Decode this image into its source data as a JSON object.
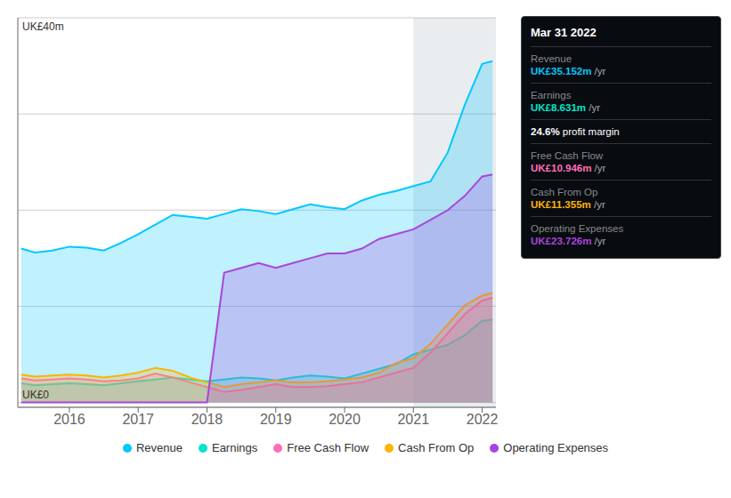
{
  "chart_data": {
    "type": "area",
    "x": [
      2015.3,
      2015.5,
      2015.75,
      2016.0,
      2016.25,
      2016.5,
      2016.75,
      2017.0,
      2017.25,
      2017.5,
      2017.75,
      2018.0,
      2018.25,
      2018.5,
      2018.75,
      2019.0,
      2019.25,
      2019.5,
      2019.75,
      2020.0,
      2020.25,
      2020.5,
      2020.75,
      2021.0,
      2021.25,
      2021.5,
      2021.75,
      2022.0,
      2022.15
    ],
    "series": [
      {
        "name": "Revenue",
        "color": "#00c8ff",
        "values": [
          16.0,
          15.6,
          15.8,
          16.2,
          16.1,
          15.8,
          16.6,
          17.5,
          18.5,
          19.5,
          19.3,
          19.1,
          19.6,
          20.1,
          19.9,
          19.6,
          20.1,
          20.6,
          20.3,
          20.1,
          21.0,
          21.6,
          22.0,
          22.5,
          23.0,
          26.0,
          31.0,
          35.2,
          35.5
        ]
      },
      {
        "name": "Earnings",
        "color": "#00e5cc",
        "values": [
          2.0,
          1.8,
          1.9,
          2.0,
          1.9,
          1.8,
          2.0,
          2.2,
          2.4,
          2.6,
          2.4,
          2.2,
          2.4,
          2.6,
          2.5,
          2.3,
          2.6,
          2.8,
          2.7,
          2.5,
          3.0,
          3.5,
          4.0,
          5.0,
          5.5,
          6.0,
          7.0,
          8.5,
          8.6
        ]
      },
      {
        "name": "Free Cash Flow",
        "color": "#ff6eb4",
        "values": [
          2.5,
          2.3,
          2.4,
          2.5,
          2.4,
          2.2,
          2.3,
          2.5,
          3.0,
          2.6,
          2.1,
          1.6,
          1.1,
          1.3,
          1.6,
          1.9,
          1.6,
          1.6,
          1.7,
          1.9,
          2.1,
          2.6,
          3.1,
          3.6,
          5.2,
          7.2,
          9.2,
          10.6,
          10.9
        ]
      },
      {
        "name": "Cash From Op",
        "color": "#ffb300",
        "values": [
          2.9,
          2.7,
          2.8,
          2.9,
          2.8,
          2.6,
          2.8,
          3.1,
          3.6,
          3.3,
          2.6,
          2.1,
          1.6,
          1.9,
          2.1,
          2.3,
          2.1,
          2.1,
          2.2,
          2.4,
          2.6,
          3.1,
          4.1,
          4.6,
          6.1,
          8.1,
          10.1,
          11.1,
          11.4
        ]
      },
      {
        "name": "Operating Expenses",
        "color": "#aa44dd",
        "values": [
          0.0,
          0.0,
          0.0,
          0.0,
          0.0,
          0.0,
          0.0,
          0.0,
          0.0,
          0.0,
          0.0,
          0.0,
          13.5,
          14.0,
          14.5,
          14.0,
          14.5,
          15.0,
          15.5,
          15.5,
          16.0,
          17.0,
          17.5,
          18.0,
          19.0,
          20.0,
          21.5,
          23.5,
          23.7
        ]
      }
    ],
    "xlim": [
      2015.25,
      2022.2
    ],
    "xticks": [
      2016,
      2017,
      2018,
      2019,
      2020,
      2021,
      2022
    ],
    "ylim": [
      -0.5,
      40
    ],
    "yticks": [
      0,
      10,
      20,
      30,
      40
    ],
    "grid": true,
    "tick_labels": "x",
    "legend": "bottom",
    "highlight_range": [
      2021.0,
      2022.2
    ],
    "annotations": [
      {
        "text": "UK£40m",
        "y": 40
      },
      {
        "text": "UK£0",
        "y": 0
      }
    ],
    "info_box": {
      "title": "Mar 31 2022",
      "rows": [
        {
          "label": "Revenue",
          "value": "UK£35.152m",
          "suffix": " /yr",
          "color": "#00c8ff"
        },
        {
          "label": "Earnings",
          "value": "UK£8.631m",
          "suffix": " /yr",
          "color": "#00e5cc"
        },
        {
          "value": "24.6% profit margin",
          "color": "#ffffff"
        },
        {
          "label": "Free Cash Flow",
          "value": "UK£10.946m",
          "suffix": " /yr",
          "color": "#ff6eb4"
        },
        {
          "label": "Cash From Op",
          "value": "UK£11.355m",
          "suffix": " /yr",
          "color": "#ffb300"
        },
        {
          "label": "Operating Expenses",
          "value": "UK£23.726m",
          "suffix": " /yr",
          "color": "#aa44dd"
        }
      ]
    }
  }
}
